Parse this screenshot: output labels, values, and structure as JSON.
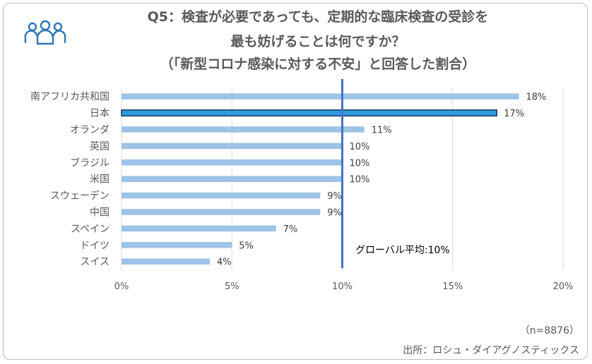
{
  "titles": {
    "line1": "Q5：検査が必要であっても、定期的な臨床検査の受診を",
    "line2": "最も妨げることは何ですか？",
    "line3": "（「新型コロナ感染に対する不安」と回答した割合）"
  },
  "footer": {
    "sample": "（n=8876）",
    "source": "出所：ロシュ・ダイアグノスティックス"
  },
  "icons": {
    "header": "people-group-icon"
  },
  "colors": {
    "bar": "#9dc3e6",
    "highlight": "#2e9be0",
    "highlight_border": "#1f3864",
    "average_line": "#4472c4"
  },
  "chart_data": {
    "type": "bar",
    "orientation": "horizontal",
    "categories": [
      "南アフリカ共和国",
      "日本",
      "オランダ",
      "英国",
      "ブラジル",
      "米国",
      "スウェーデン",
      "中国",
      "スペイン",
      "ドイツ",
      "スイス"
    ],
    "values": [
      18,
      17,
      11,
      10,
      10,
      10,
      9,
      9,
      7,
      5,
      4
    ],
    "value_labels": [
      "18%",
      "17%",
      "11%",
      "10%",
      "10%",
      "10%",
      "9%",
      "9%",
      "7%",
      "5%",
      "4%"
    ],
    "highlight_category": "日本",
    "x_ticks": [
      0,
      5,
      10,
      15,
      20
    ],
    "x_tick_labels": [
      "0%",
      "5%",
      "10%",
      "15%",
      "20%"
    ],
    "xlim": [
      0,
      20
    ],
    "reference_line": {
      "value": 10,
      "label": "グローバル平均:10%"
    },
    "grid": true,
    "legend": "none"
  }
}
